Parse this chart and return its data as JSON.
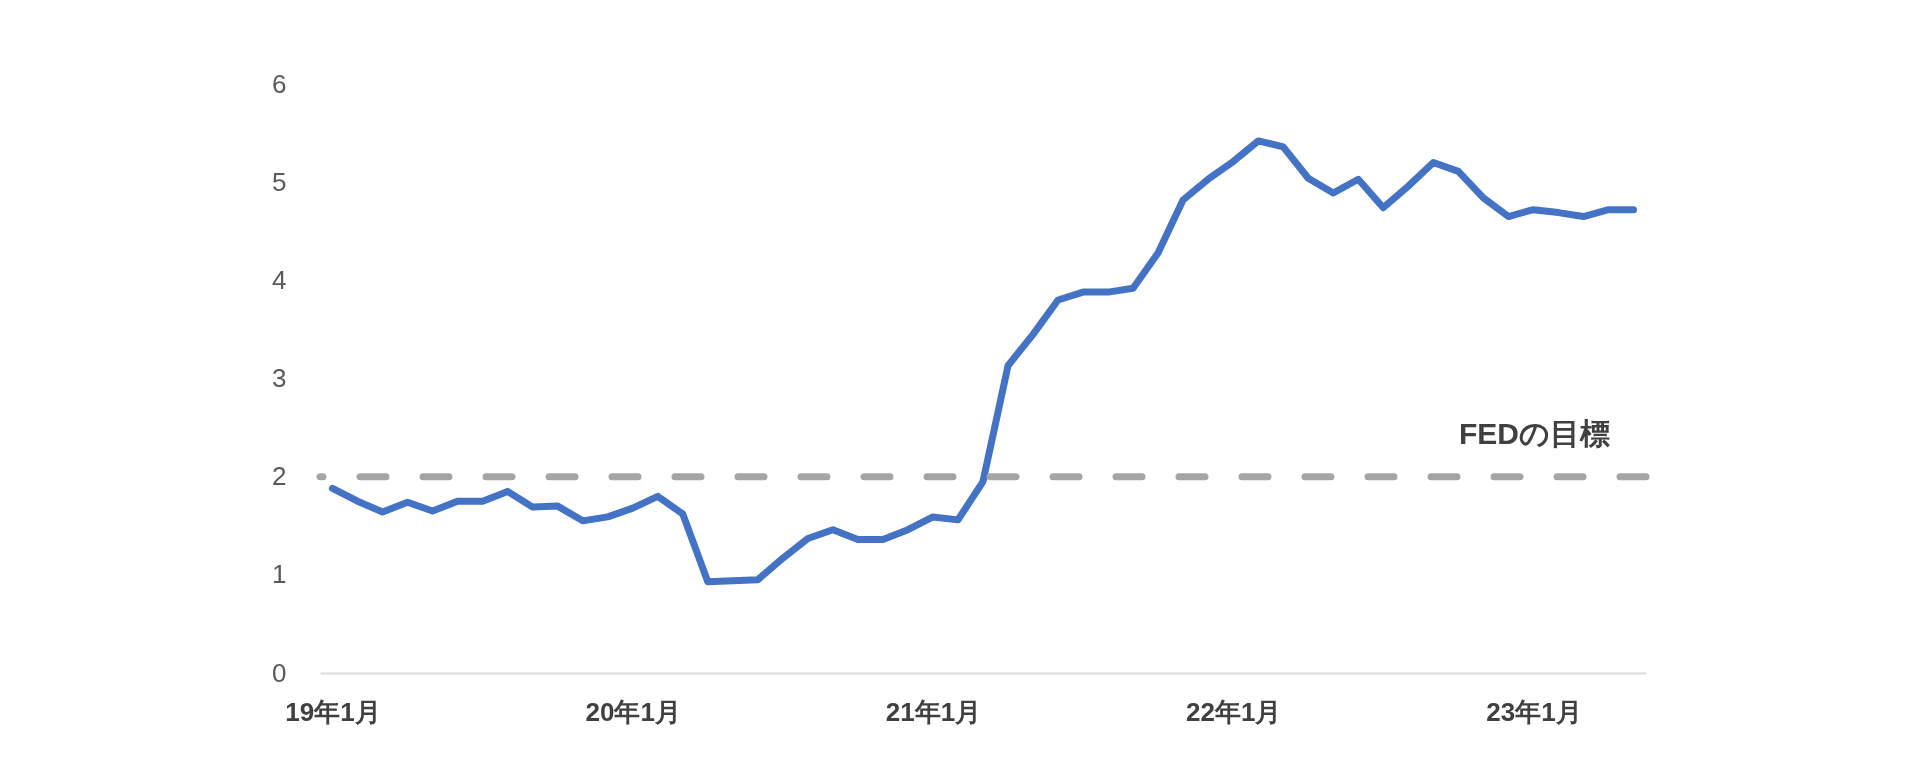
{
  "chart_data": {
    "type": "line",
    "categories": [
      "19年1月",
      null,
      null,
      null,
      null,
      null,
      null,
      null,
      null,
      null,
      null,
      null,
      "20年1月",
      null,
      null,
      null,
      null,
      null,
      null,
      null,
      null,
      null,
      null,
      null,
      "21年1月",
      null,
      null,
      null,
      null,
      null,
      null,
      null,
      null,
      null,
      null,
      null,
      "22年1月",
      null,
      null,
      null,
      null,
      null,
      null,
      null,
      null,
      null,
      null,
      null,
      "23年1月",
      null,
      null,
      null,
      null
    ],
    "series": [
      {
        "color": "#4472c4",
        "values": [
          1.88,
          1.75,
          1.64,
          1.74,
          1.65,
          1.75,
          1.75,
          1.85,
          1.69,
          1.7,
          1.55,
          1.59,
          1.68,
          1.8,
          1.62,
          0.93,
          0.94,
          0.95,
          1.17,
          1.37,
          1.46,
          1.36,
          1.36,
          1.46,
          1.59,
          1.56,
          1.95,
          3.13,
          3.45,
          3.8,
          3.88,
          3.88,
          3.92,
          4.28,
          4.82,
          5.03,
          5.21,
          5.42,
          5.36,
          5.04,
          4.89,
          5.03,
          4.74,
          4.96,
          5.2,
          5.11,
          4.84,
          4.65,
          4.72,
          4.69,
          4.65,
          4.72,
          4.72
        ]
      }
    ],
    "ylim": [
      0,
      6
    ],
    "yticks": [
      0,
      1,
      2,
      3,
      4,
      5,
      6
    ],
    "grid": false,
    "ref_lines": [
      {
        "axis": "y",
        "value": 2,
        "label": "FEDの目標",
        "color": "#a5a5a5",
        "line_style": "dashed"
      }
    ]
  }
}
